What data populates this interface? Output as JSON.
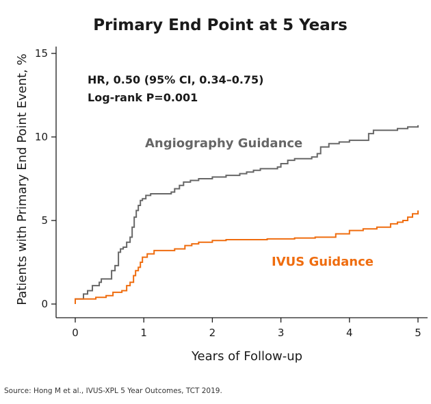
{
  "chart_data": {
    "type": "line",
    "title": "Primary End Point at 5 Years",
    "xlabel": "Years of Follow-up",
    "ylabel": "Patients with Primary End Point Event, %",
    "xlim": [
      0,
      5
    ],
    "ylim": [
      0,
      15
    ],
    "x_ticks": [
      0,
      1,
      2,
      3,
      4,
      5
    ],
    "y_ticks": [
      0,
      5,
      10,
      15
    ],
    "grid": false,
    "annotations": [
      "HR, 0.50 (95% CI, 0.34–0.75)",
      "Log-rank P=0.001"
    ],
    "series": [
      {
        "name": "Angiography Guidance",
        "color": "#666666",
        "step": true,
        "x": [
          0,
          0.12,
          0.18,
          0.25,
          0.35,
          0.38,
          0.53,
          0.58,
          0.63,
          0.66,
          0.7,
          0.75,
          0.8,
          0.83,
          0.86,
          0.89,
          0.92,
          0.95,
          0.98,
          1.03,
          1.1,
          1.4,
          1.45,
          1.52,
          1.58,
          1.68,
          1.8,
          2.0,
          2.2,
          2.4,
          2.5,
          2.6,
          2.7,
          2.95,
          3.0,
          3.1,
          3.2,
          3.45,
          3.53,
          3.58,
          3.7,
          3.85,
          4.0,
          4.28,
          4.35,
          4.7,
          4.85,
          5.0
        ],
        "values": [
          0.3,
          0.6,
          0.8,
          1.1,
          1.3,
          1.5,
          2.0,
          2.3,
          3.1,
          3.3,
          3.4,
          3.7,
          4.0,
          4.6,
          5.2,
          5.6,
          5.9,
          6.2,
          6.3,
          6.5,
          6.6,
          6.7,
          6.9,
          7.1,
          7.3,
          7.4,
          7.5,
          7.6,
          7.7,
          7.8,
          7.9,
          8.0,
          8.1,
          8.2,
          8.4,
          8.6,
          8.7,
          8.8,
          9.0,
          9.4,
          9.6,
          9.7,
          9.8,
          10.2,
          10.4,
          10.5,
          10.6,
          10.7
        ]
      },
      {
        "name": "IVUS Guidance",
        "color": "#ef6c0e",
        "step": true,
        "x": [
          0,
          0.3,
          0.45,
          0.55,
          0.68,
          0.75,
          0.8,
          0.85,
          0.88,
          0.92,
          0.95,
          0.98,
          1.05,
          1.15,
          1.45,
          1.6,
          1.7,
          1.8,
          2.0,
          2.2,
          2.8,
          3.2,
          3.5,
          3.8,
          4.0,
          4.2,
          4.4,
          4.6,
          4.7,
          4.78,
          4.85,
          4.92,
          5.0
        ],
        "values": [
          0.3,
          0.4,
          0.5,
          0.7,
          0.8,
          1.1,
          1.3,
          1.7,
          2.0,
          2.2,
          2.5,
          2.8,
          3.0,
          3.2,
          3.3,
          3.5,
          3.6,
          3.7,
          3.8,
          3.85,
          3.9,
          3.95,
          4.0,
          4.2,
          4.4,
          4.5,
          4.6,
          4.8,
          4.9,
          5.0,
          5.2,
          5.4,
          5.6
        ]
      }
    ]
  },
  "source": "Source: Hong M et al., IVUS-XPL 5 Year Outcomes, TCT 2019."
}
